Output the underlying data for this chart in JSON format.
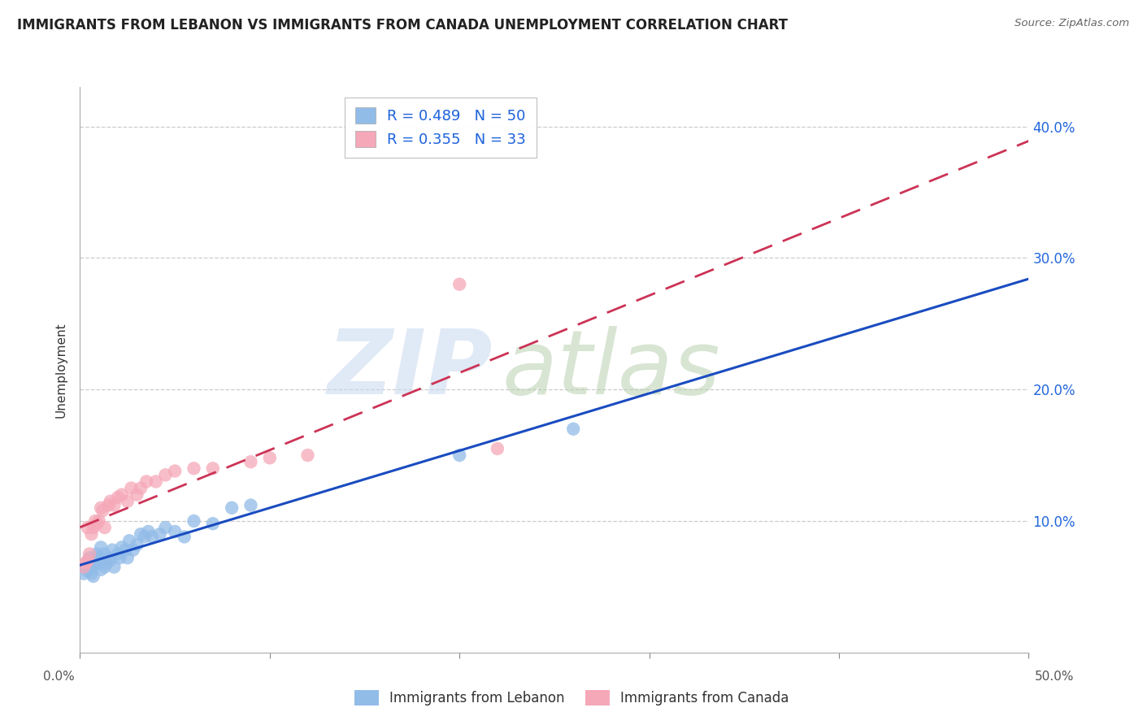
{
  "title": "IMMIGRANTS FROM LEBANON VS IMMIGRANTS FROM CANADA UNEMPLOYMENT CORRELATION CHART",
  "source": "Source: ZipAtlas.com",
  "ylabel": "Unemployment",
  "xlim": [
    0.0,
    0.5
  ],
  "ylim": [
    0.0,
    0.43
  ],
  "xticks": [
    0.0,
    0.1,
    0.2,
    0.3,
    0.4,
    0.5
  ],
  "yticks": [
    0.1,
    0.2,
    0.3,
    0.4
  ],
  "yticklabels": [
    "10.0%",
    "20.0%",
    "30.0%",
    "40.0%"
  ],
  "lebanon_R": 0.489,
  "lebanon_N": 50,
  "canada_R": 0.355,
  "canada_N": 33,
  "lebanon_color": "#92bce8",
  "canada_color": "#f5a8b8",
  "trend_lebanon_color": "#1a4cc0",
  "trend_canada_color": "#cc3355",
  "legend_label_lebanon": "Immigrants from Lebanon",
  "legend_label_canada": "Immigrants from Canada",
  "lebanon_x": [
    0.002,
    0.003,
    0.004,
    0.004,
    0.005,
    0.005,
    0.005,
    0.005,
    0.006,
    0.006,
    0.007,
    0.007,
    0.007,
    0.008,
    0.008,
    0.009,
    0.01,
    0.01,
    0.011,
    0.011,
    0.012,
    0.013,
    0.013,
    0.014,
    0.015,
    0.016,
    0.017,
    0.018,
    0.02,
    0.021,
    0.022,
    0.024,
    0.025,
    0.026,
    0.028,
    0.03,
    0.032,
    0.034,
    0.036,
    0.038,
    0.042,
    0.045,
    0.05,
    0.055,
    0.06,
    0.07,
    0.08,
    0.09,
    0.2,
    0.26
  ],
  "lebanon_y": [
    0.06,
    0.065,
    0.062,
    0.068,
    0.063,
    0.07,
    0.072,
    0.068,
    0.065,
    0.06,
    0.058,
    0.065,
    0.068,
    0.07,
    0.072,
    0.075,
    0.068,
    0.072,
    0.063,
    0.08,
    0.07,
    0.065,
    0.075,
    0.068,
    0.072,
    0.07,
    0.078,
    0.065,
    0.075,
    0.072,
    0.08,
    0.078,
    0.072,
    0.085,
    0.078,
    0.082,
    0.09,
    0.088,
    0.092,
    0.088,
    0.09,
    0.095,
    0.092,
    0.088,
    0.1,
    0.098,
    0.11,
    0.112,
    0.15,
    0.17
  ],
  "canada_x": [
    0.002,
    0.003,
    0.004,
    0.004,
    0.005,
    0.006,
    0.007,
    0.008,
    0.009,
    0.01,
    0.011,
    0.012,
    0.013,
    0.015,
    0.016,
    0.018,
    0.02,
    0.022,
    0.025,
    0.027,
    0.03,
    0.032,
    0.035,
    0.04,
    0.045,
    0.05,
    0.06,
    0.07,
    0.09,
    0.1,
    0.12,
    0.2,
    0.22
  ],
  "canada_y": [
    0.065,
    0.068,
    0.07,
    0.095,
    0.075,
    0.09,
    0.095,
    0.1,
    0.098,
    0.1,
    0.11,
    0.108,
    0.095,
    0.112,
    0.115,
    0.112,
    0.118,
    0.12,
    0.115,
    0.125,
    0.12,
    0.125,
    0.13,
    0.13,
    0.135,
    0.138,
    0.14,
    0.14,
    0.145,
    0.148,
    0.15,
    0.28,
    0.155
  ]
}
